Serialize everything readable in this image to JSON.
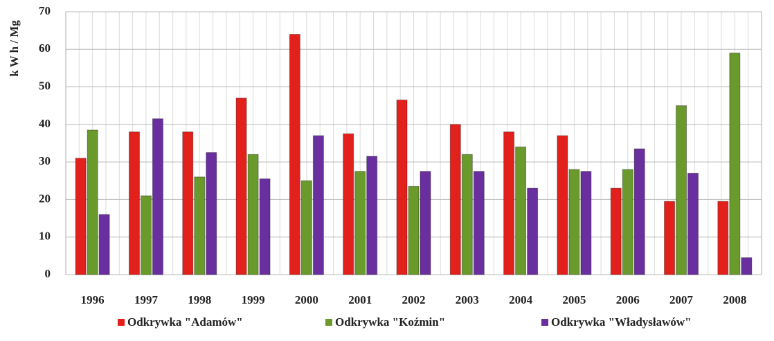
{
  "chart_data": {
    "type": "bar",
    "y_label": "k W h / Mg",
    "categories": [
      "1996",
      "1997",
      "1998",
      "1999",
      "2000",
      "2001",
      "2002",
      "2003",
      "2004",
      "2005",
      "2006",
      "2007",
      "2008"
    ],
    "series": [
      {
        "name": "Odkrywka \"Adamów\"",
        "color": "#e3211c",
        "values": [
          31,
          38,
          38,
          47,
          64,
          37.5,
          46.5,
          40,
          38,
          37,
          23,
          19.5,
          19.5
        ]
      },
      {
        "name": "Odkrywka \"Koźmin\"",
        "color": "#6b9a2c",
        "values": [
          38.5,
          21,
          26,
          32,
          25,
          27.5,
          23.5,
          32,
          34,
          28,
          28,
          45,
          59
        ]
      },
      {
        "name": "Odkrywka \"Władysławów\"",
        "color": "#6a2f9e",
        "values": [
          16,
          41.5,
          32.5,
          25.5,
          37,
          31.5,
          27.5,
          27.5,
          23,
          27.5,
          33.5,
          27,
          4.5
        ]
      }
    ],
    "ylim": [
      0,
      70
    ],
    "yticks": [
      0,
      10,
      20,
      30,
      40,
      50,
      60,
      70
    ],
    "grid": true,
    "legend": "bottom"
  }
}
